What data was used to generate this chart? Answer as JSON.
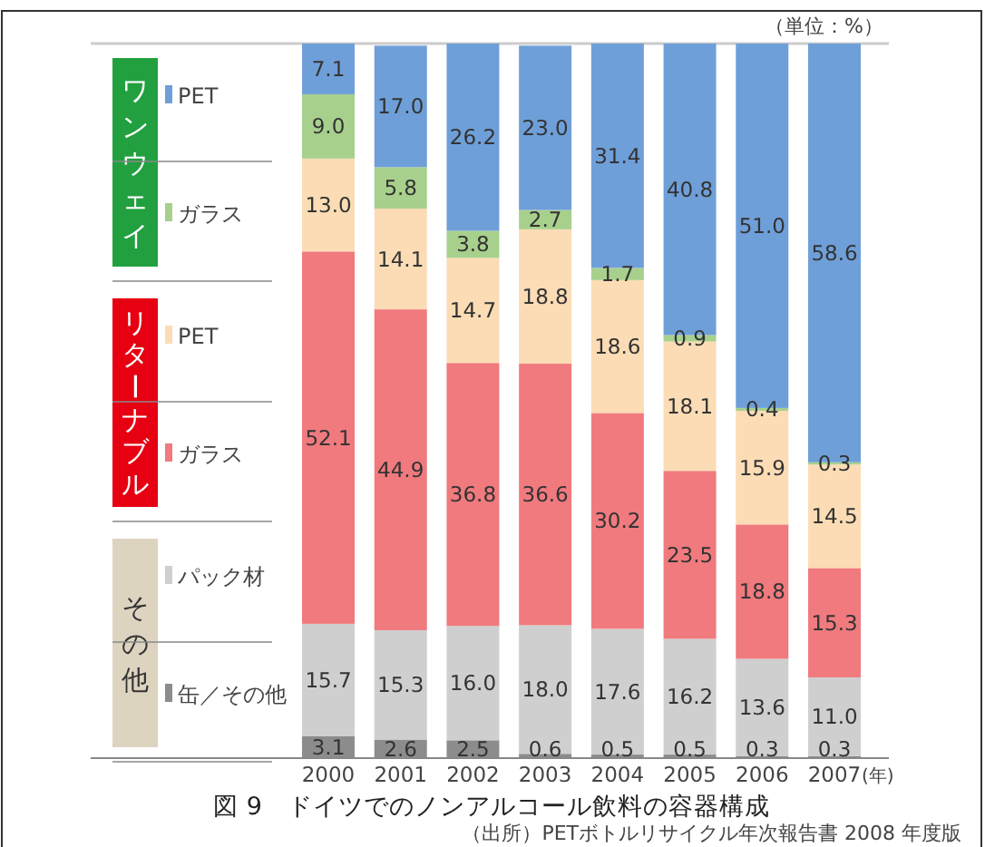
{
  "chart_data": {
    "type": "bar",
    "stacked": true,
    "legend": "left",
    "tick_labels": "x",
    "title": "図 9　ドイツでのノンアルコール飲料の容器構成",
    "xlabel": "(年)",
    "categories": [
      "2000",
      "2001",
      "2002",
      "2003",
      "2004",
      "2005",
      "2006",
      "2007"
    ],
    "ylim": [
      0,
      100
    ],
    "series": [
      {
        "name": "缶／その他",
        "color": "#8c8c8c",
        "values": [
          3.1,
          2.6,
          2.5,
          0.6,
          0.5,
          0.5,
          0.3,
          0.3
        ],
        "value_labels": [
          "3.1",
          "2.6",
          "2.5",
          "0.6",
          "0.5",
          "0.5",
          "0.3",
          "0.3"
        ]
      },
      {
        "name": "パック材",
        "color": "#cfcfcf",
        "values": [
          15.7,
          15.3,
          16.0,
          18.0,
          17.6,
          16.2,
          13.6,
          11.0
        ],
        "value_labels": [
          "15.7",
          "15.3",
          "16.0",
          "18.0",
          "17.6",
          "16.2",
          "13.6",
          "11.0"
        ]
      },
      {
        "name": "ガラス",
        "color": "#f07a7e",
        "values": [
          52.1,
          44.9,
          36.8,
          36.6,
          30.2,
          23.5,
          18.8,
          15.3
        ],
        "value_labels": [
          "52.1",
          "44.9",
          "36.8",
          "36.6",
          "30.2",
          "23.5",
          "18.8",
          "15.3"
        ]
      },
      {
        "name": "PET",
        "color": "#fbdcb5",
        "values": [
          13.0,
          14.1,
          14.7,
          18.8,
          18.6,
          18.1,
          15.9,
          14.5
        ],
        "value_labels": [
          "13.0",
          "14.1",
          "14.7",
          "18.8",
          "18.6",
          "18.1",
          "15.9",
          "14.5"
        ]
      },
      {
        "name": "ガラス",
        "color": "#a8d08d",
        "values": [
          9.0,
          5.8,
          3.8,
          2.7,
          1.7,
          0.9,
          0.4,
          0.3
        ],
        "value_labels": [
          "9.0",
          "5.8",
          "3.8",
          "2.7",
          "1.7",
          "0.9",
          "0.4",
          "0.3"
        ]
      },
      {
        "name": "PET",
        "color": "#6f9fd8",
        "values": [
          7.1,
          17.0,
          26.2,
          23.0,
          31.4,
          40.8,
          51.0,
          58.6
        ],
        "value_labels": [
          "7.1",
          "17.0",
          "26.2",
          "23.0",
          "31.4",
          "40.8",
          "51.0",
          "58.6"
        ]
      }
    ],
    "annotations": [
      "（単位：%）",
      "その他",
      "リターナブル",
      "ワンウェイ",
      "（出所）PETボトルリサイクル年次報告書 2008 年度版"
    ]
  }
}
